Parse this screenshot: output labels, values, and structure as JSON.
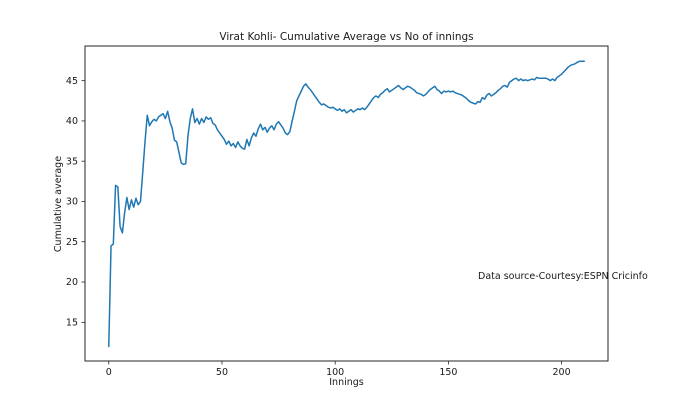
{
  "figure": {
    "background": "#ffffff",
    "text_color": "#1a1a1a",
    "spine_color": "#262626"
  },
  "chart_data": {
    "type": "line",
    "title": "Virat Kohli- Cumulative Average vs No of innings",
    "xlabel": "Innings",
    "ylabel": "Cumulative average",
    "grid": false,
    "legend": "none",
    "line_color": "#1f77b4",
    "x_start": 0,
    "x_step": 1,
    "x_ticks": [
      0,
      50,
      100,
      150,
      200
    ],
    "y_ticks": [
      15,
      20,
      25,
      30,
      35,
      40,
      45
    ],
    "xlim": [
      -10.5,
      220.5
    ],
    "ylim": [
      10.2,
      49.3
    ],
    "annotation": {
      "text": "Data source-Courtesy:ESPN Cricinfo",
      "x": 163,
      "y": 20.5
    },
    "series": [
      {
        "name": "Cumulative average",
        "color": "#1f77b4",
        "values": [
          12.0,
          24.5,
          24.7,
          32.0,
          31.8,
          26.9,
          26.1,
          28.6,
          30.5,
          29.0,
          30.2,
          29.3,
          30.4,
          29.6,
          30.0,
          33.6,
          37.4,
          40.7,
          39.4,
          39.9,
          40.2,
          40.0,
          40.5,
          40.7,
          40.9,
          40.3,
          41.2,
          39.9,
          39.1,
          37.6,
          37.4,
          36.1,
          34.8,
          34.6,
          34.7,
          38.2,
          40.3,
          41.5,
          39.8,
          40.3,
          39.6,
          40.3,
          39.8,
          40.5,
          40.2,
          40.4,
          39.7,
          39.5,
          38.9,
          38.5,
          38.1,
          37.7,
          37.1,
          37.5,
          36.9,
          37.2,
          36.7,
          37.4,
          36.9,
          36.6,
          36.5,
          37.7,
          36.9,
          37.9,
          38.5,
          38.1,
          39.0,
          39.6,
          38.9,
          39.2,
          38.6,
          39.1,
          39.4,
          38.9,
          39.6,
          39.9,
          39.5,
          39.1,
          38.5,
          38.3,
          38.7,
          40.0,
          41.2,
          42.5,
          43.1,
          43.7,
          44.3,
          44.6,
          44.2,
          43.9,
          43.5,
          43.1,
          42.7,
          42.3,
          42.0,
          42.1,
          41.9,
          41.7,
          41.6,
          41.7,
          41.5,
          41.3,
          41.5,
          41.2,
          41.4,
          41.0,
          41.2,
          41.4,
          41.1,
          41.3,
          41.5,
          41.4,
          41.6,
          41.4,
          41.7,
          42.1,
          42.5,
          42.9,
          43.1,
          42.9,
          43.3,
          43.5,
          43.8,
          44.0,
          43.6,
          43.8,
          44.0,
          44.2,
          44.4,
          44.1,
          43.9,
          44.1,
          44.3,
          44.2,
          44.0,
          43.8,
          43.5,
          43.4,
          43.3,
          43.1,
          43.3,
          43.6,
          43.9,
          44.1,
          44.3,
          43.9,
          43.7,
          43.4,
          43.7,
          43.6,
          43.7,
          43.6,
          43.7,
          43.5,
          43.4,
          43.3,
          43.2,
          43.0,
          42.8,
          42.5,
          42.3,
          42.2,
          42.1,
          42.4,
          42.3,
          42.9,
          42.7,
          43.2,
          43.4,
          43.1,
          43.3,
          43.5,
          43.8,
          44.0,
          44.3,
          44.4,
          44.2,
          44.8,
          45.0,
          45.2,
          45.3,
          45.0,
          45.2,
          45.0,
          45.1,
          45.0,
          45.1,
          45.2,
          45.1,
          45.4,
          45.3,
          45.3,
          45.3,
          45.3,
          45.2,
          45.0,
          45.2,
          45.0,
          45.4,
          45.6,
          45.8,
          46.1,
          46.4,
          46.7,
          46.9,
          47.0,
          47.1,
          47.3,
          47.4,
          47.4,
          47.4
        ]
      }
    ]
  }
}
